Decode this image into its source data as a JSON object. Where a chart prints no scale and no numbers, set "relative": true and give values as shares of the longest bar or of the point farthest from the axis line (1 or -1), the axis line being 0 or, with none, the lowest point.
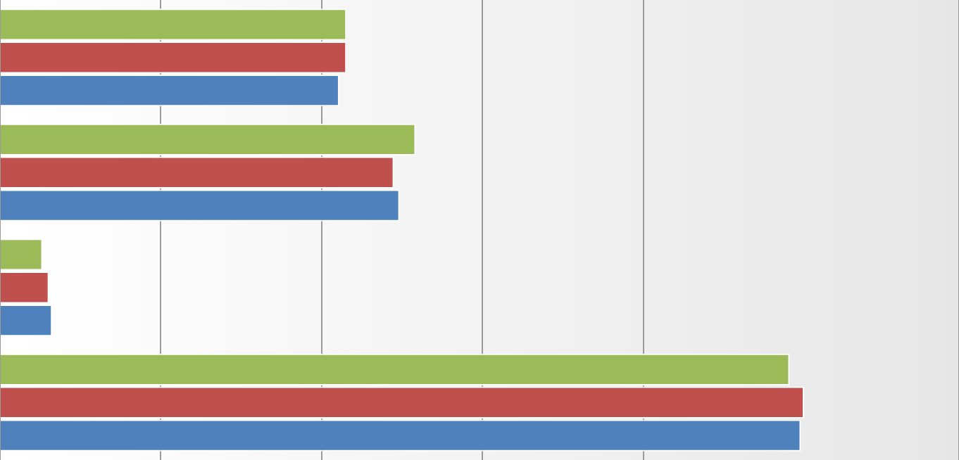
{
  "chart_data": {
    "type": "bar",
    "orientation": "horizontal",
    "relative": true,
    "grid": "x",
    "legend": false,
    "categories": [
      null,
      null,
      null,
      null
    ],
    "series": [
      {
        "color": "#9bbb59",
        "values": [
          0.431,
          0.517,
          0.053,
          0.982
        ]
      },
      {
        "color": "#c0504d",
        "values": [
          0.431,
          0.49,
          0.061,
          1
        ]
      },
      {
        "color": "#4f81bd",
        "values": [
          0.422,
          0.497,
          0.065,
          0.996
        ]
      }
    ]
  }
}
